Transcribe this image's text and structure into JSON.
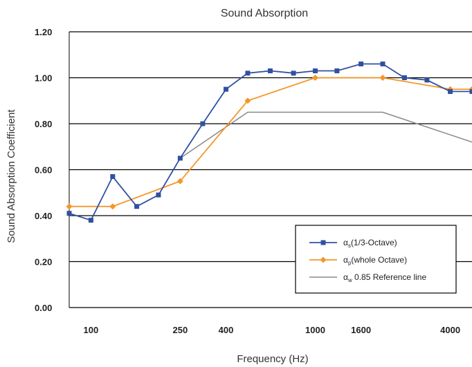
{
  "chart_data": {
    "type": "line",
    "title": "Sound Absorption",
    "xlabel": "Frequency (Hz)",
    "ylabel": "Sound Absorption Coefficient",
    "ylim": [
      0,
      1.2
    ],
    "yticks": [
      "0.00",
      "0.20",
      "0.40",
      "0.60",
      "0.80",
      "1.00",
      "1.20"
    ],
    "xticks": [
      "100",
      "250",
      "400",
      "1000",
      "1600",
      "4000"
    ],
    "x_scale": "third-octave bands, 80 Hz to 5000 Hz",
    "grid": "horizontal",
    "legend_position": "lower-right",
    "series": [
      {
        "name": "αs (1/3-Octave)",
        "symbol": "α",
        "subscript": "s",
        "label": "(1/3-Octave)",
        "color": "#3050a0",
        "marker": "square",
        "x": [
          80,
          100,
          125,
          160,
          200,
          250,
          315,
          400,
          500,
          630,
          800,
          1000,
          1250,
          1600,
          2000,
          2500,
          3150,
          4000,
          5000
        ],
        "values": [
          0.41,
          0.38,
          0.57,
          0.44,
          0.49,
          0.65,
          0.8,
          0.95,
          1.02,
          1.03,
          1.02,
          1.03,
          1.03,
          1.06,
          1.06,
          1.0,
          0.99,
          0.94,
          0.94
        ]
      },
      {
        "name": "αp (whole Octave)",
        "symbol": "α",
        "subscript": "p",
        "label": "(whole Octave)",
        "color": "#f5962a",
        "marker": "diamond",
        "x": [
          80,
          125,
          250,
          500,
          1000,
          2000,
          4000,
          5000
        ],
        "values": [
          0.44,
          0.44,
          0.55,
          0.9,
          1.0,
          1.0,
          0.95,
          0.95
        ]
      },
      {
        "name": "αw 0.85 Reference line",
        "symbol": "α",
        "subscript": "w",
        "label": "0.85 Reference line",
        "color": "#888888",
        "marker": "none",
        "x": [
          250,
          500,
          2000,
          5000
        ],
        "values": [
          0.65,
          0.85,
          0.85,
          0.72
        ]
      }
    ]
  }
}
